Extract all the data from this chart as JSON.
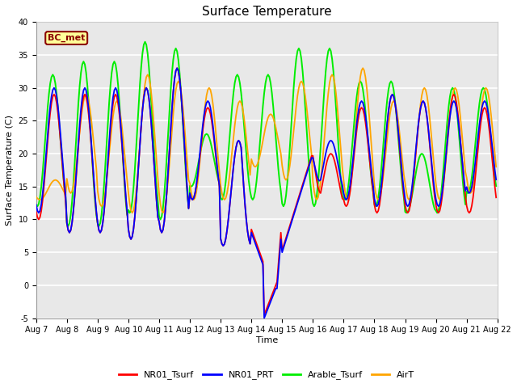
{
  "title": "Surface Temperature",
  "ylabel": "Surface Temperature (C)",
  "xlabel": "Time",
  "annotation": "BC_met",
  "ylim": [
    -5,
    40
  ],
  "yticks": [
    -5,
    0,
    5,
    10,
    15,
    20,
    25,
    30,
    35,
    40
  ],
  "legend_entries": [
    "NR01_Tsurf",
    "NR01_PRT",
    "Arable_Tsurf",
    "AirT"
  ],
  "colors": {
    "red": "#ff0000",
    "blue": "#0000ff",
    "green": "#00ee00",
    "orange": "#ffa500"
  },
  "bg_color": "#e8e8e8",
  "grid_color": "#ffffff",
  "annotation_color": "#8b0000",
  "annotation_bg": "#ffff99",
  "title_fontsize": 11,
  "axis_fontsize": 8,
  "tick_fontsize": 7
}
